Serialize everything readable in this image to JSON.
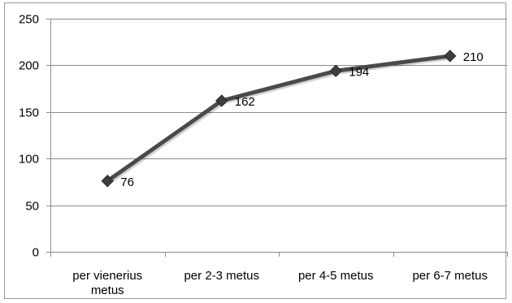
{
  "chart_data": {
    "type": "line",
    "title": "",
    "xlabel": "",
    "ylabel": "",
    "categories": [
      [
        "per vienerius",
        "metus"
      ],
      [
        "per 2-3 metus"
      ],
      [
        "per 4-5 metus"
      ],
      [
        "per 6-7 metus"
      ]
    ],
    "series": [
      {
        "values": [
          76,
          162,
          194,
          210
        ],
        "color": "#4a4a4a",
        "marker": "diamond"
      }
    ],
    "ylim": [
      0,
      250
    ],
    "yticks": [
      0,
      50,
      100,
      150,
      200,
      250
    ],
    "grid": "horizontal",
    "legend": "none",
    "data_labels": true
  }
}
